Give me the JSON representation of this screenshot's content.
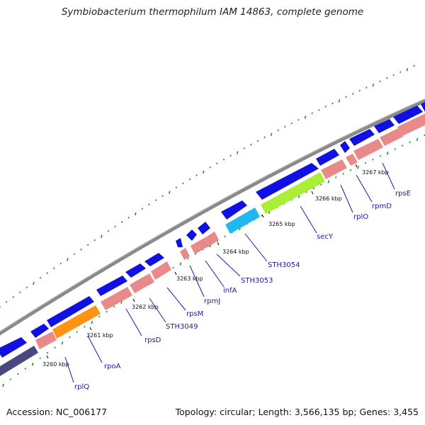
{
  "title": "Symbiobacterium thermophilum IAM 14863, complete genome",
  "footer": {
    "accession": "Accession: NC_006177",
    "stats": "Topology: circular; Length: 3,566,135 bp; Genes: 3,455"
  },
  "kbp_labels": [
    "3260 kbp",
    "3261 kbp",
    "3262 kbp",
    "3263 kbp",
    "3264 kbp",
    "3265 kbp",
    "3266 kbp",
    "3267 kbp"
  ],
  "gene_labels": [
    "rplQ",
    "rpoA",
    "rpsD",
    "STH3049",
    "rpsM",
    "rpmJ",
    "infA",
    "STH3053",
    "STH3054",
    "secY",
    "rplO",
    "rpmD",
    "rpsE"
  ],
  "colors": {
    "backbone": "#8a8a8a",
    "forward_gene": "#1010e0",
    "rrna_track": "#e88a8a",
    "rpoA": "#ff9414",
    "secY": "#aaee3a",
    "infA": "#20b8ee",
    "rplQ": "#4a4880",
    "skew_dots": "#2a8a2a",
    "label": "#1a1aa6"
  }
}
